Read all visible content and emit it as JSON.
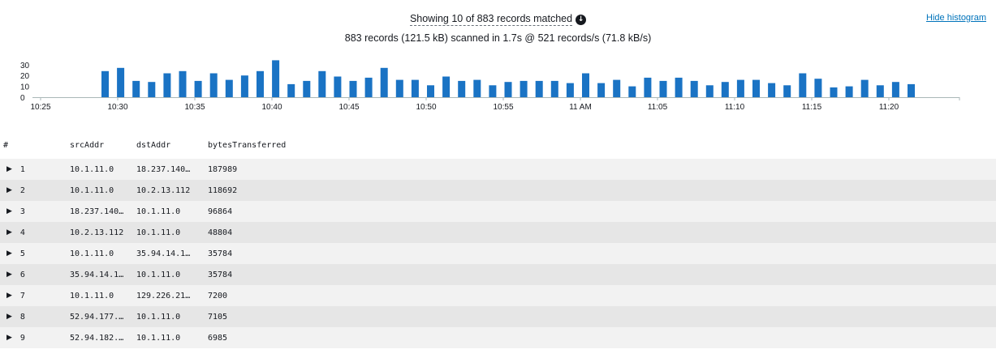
{
  "summary": {
    "line1": "Showing 10 of 883 records matched",
    "line2": "883 records (121.5 kB) scanned in 1.7s @ 521 records/s (71.8 kB/s)",
    "info_icon": "info-icon"
  },
  "hide_histogram_label": "Hide histogram",
  "colors": {
    "bar": "#1a73c4",
    "link": "#0073bb"
  },
  "chart_data": {
    "type": "bar",
    "yticks": [
      "30",
      "20",
      "10",
      "0"
    ],
    "ylim": [
      0,
      35
    ],
    "xticks": [
      "10:25",
      "10:30",
      "10:35",
      "10:40",
      "10:45",
      "10:50",
      "10:55",
      "11 AM",
      "11:05",
      "11:10",
      "11:15",
      "11:20"
    ],
    "values": [
      24,
      27,
      15,
      14,
      22,
      24,
      15,
      22,
      16,
      20,
      24,
      34,
      12,
      15,
      24,
      19,
      15,
      18,
      27,
      16,
      16,
      11,
      19,
      15,
      16,
      11,
      14,
      15,
      15,
      15,
      13,
      22,
      13,
      16,
      10,
      18,
      15,
      18,
      15,
      11,
      14,
      16,
      16,
      13,
      11,
      22,
      17,
      9,
      10,
      16,
      11,
      14,
      12
    ]
  },
  "table": {
    "headers": {
      "num": "#",
      "src": "srcAddr",
      "dst": "dstAddr",
      "bytes": "bytesTransferred"
    },
    "rows": [
      {
        "num": "1",
        "src": "10.1.11.0",
        "dst": "18.237.140…",
        "bytes": "187989"
      },
      {
        "num": "2",
        "src": "10.1.11.0",
        "dst": "10.2.13.112",
        "bytes": "118692"
      },
      {
        "num": "3",
        "src": "18.237.140…",
        "dst": "10.1.11.0",
        "bytes": "96864"
      },
      {
        "num": "4",
        "src": "10.2.13.112",
        "dst": "10.1.11.0",
        "bytes": "48804"
      },
      {
        "num": "5",
        "src": "10.1.11.0",
        "dst": "35.94.14.1…",
        "bytes": "35784"
      },
      {
        "num": "6",
        "src": "35.94.14.1…",
        "dst": "10.1.11.0",
        "bytes": "35784"
      },
      {
        "num": "7",
        "src": "10.1.11.0",
        "dst": "129.226.21…",
        "bytes": "7200"
      },
      {
        "num": "8",
        "src": "52.94.177.…",
        "dst": "10.1.11.0",
        "bytes": "7105"
      },
      {
        "num": "9",
        "src": "52.94.182.…",
        "dst": "10.1.11.0",
        "bytes": "6985"
      }
    ]
  }
}
